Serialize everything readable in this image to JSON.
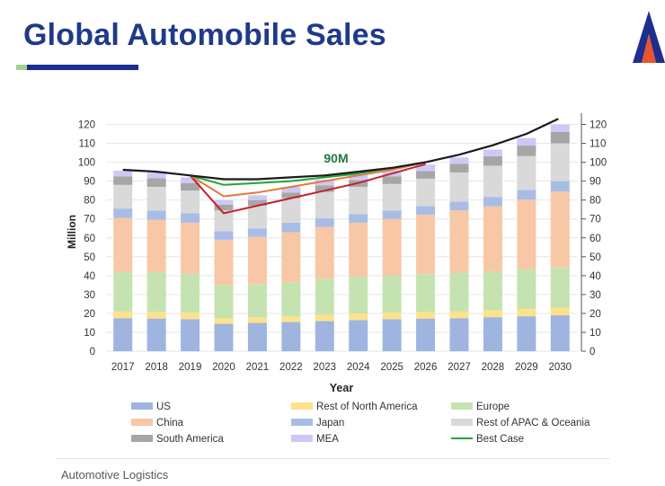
{
  "page": {
    "title": "Global Automobile Sales",
    "footer": "Automotive Logistics",
    "logo_letter": "T"
  },
  "colors": {
    "title": "#1f3a8a",
    "US": "#9fb5e0",
    "Rest of North America": "#fce28a",
    "Europe": "#c5e3b1",
    "China": "#f7c7a6",
    "Japan": "#a8bde6",
    "Rest of APAC & Oceania": "#d9d9d9",
    "South America": "#a6a6a6",
    "MEA": "#cdc8f5",
    "best_case": "#22a33a",
    "mid_case": "#e07b39",
    "worst_case": "#c0232b",
    "baseline": "#1a1a1a",
    "annotation": "#1f7a3a"
  },
  "chart_data": {
    "type": "bar",
    "stacked": true,
    "title": "",
    "xlabel": "Year",
    "ylabel": "Million",
    "ylim": [
      0,
      125
    ],
    "yticks": [
      0,
      10,
      20,
      30,
      40,
      50,
      60,
      70,
      80,
      90,
      100,
      110,
      120
    ],
    "ytick_labels": [
      "0",
      "10",
      "20",
      "30",
      "40",
      "50",
      "60",
      "70",
      "80",
      "90",
      "100",
      "110",
      "120"
    ],
    "grid": true,
    "legend_position": "bottom",
    "annotation": "90M",
    "categories": [
      "2017",
      "2018",
      "2019",
      "2020",
      "2021",
      "2022",
      "2023",
      "2024",
      "2025",
      "2026",
      "2027",
      "2028",
      "2029",
      "2030"
    ],
    "series": [
      {
        "name": "US",
        "values": [
          17.5,
          17.3,
          17.0,
          14.5,
          15.0,
          15.5,
          16.0,
          16.5,
          17.0,
          17.3,
          17.5,
          18.0,
          18.5,
          19.0
        ]
      },
      {
        "name": "Rest of North America",
        "values": [
          3.5,
          3.5,
          3.5,
          3.0,
          3.0,
          3.0,
          3.3,
          3.5,
          3.5,
          3.5,
          3.6,
          3.7,
          3.8,
          4.0
        ]
      },
      {
        "name": "Europe",
        "values": [
          21.0,
          21.2,
          20.5,
          17.5,
          17.5,
          18.0,
          19.0,
          19.5,
          19.5,
          20.0,
          20.5,
          20.5,
          21.0,
          21.5
        ]
      },
      {
        "name": "China",
        "values": [
          28.5,
          27.5,
          27.0,
          24.0,
          25.0,
          26.5,
          27.5,
          28.5,
          30.0,
          31.5,
          33.0,
          34.5,
          37.0,
          40.0
        ]
      },
      {
        "name": "Japan",
        "values": [
          5.0,
          5.0,
          5.0,
          4.5,
          4.5,
          5.0,
          4.5,
          4.5,
          4.5,
          4.5,
          4.5,
          5.0,
          5.0,
          5.5
        ]
      },
      {
        "name": "Rest of APAC & Oceania",
        "values": [
          12.5,
          12.5,
          12.0,
          11.0,
          12.0,
          13.0,
          14.0,
          14.5,
          14.0,
          14.5,
          15.5,
          16.5,
          18.0,
          20.0
        ]
      },
      {
        "name": "South America",
        "values": [
          4.5,
          4.5,
          4.0,
          3.0,
          3.0,
          3.0,
          3.5,
          3.5,
          4.0,
          4.0,
          4.5,
          5.0,
          5.5,
          6.0
        ]
      },
      {
        "name": "MEA",
        "values": [
          3.0,
          3.0,
          3.0,
          2.5,
          2.5,
          3.0,
          3.0,
          3.0,
          3.0,
          3.5,
          3.5,
          3.5,
          4.0,
          4.0
        ]
      }
    ],
    "lines": [
      {
        "name": "Baseline",
        "years": [
          "2017",
          "2018",
          "2019",
          "2020",
          "2021",
          "2022",
          "2023",
          "2024",
          "2025",
          "2026",
          "2027",
          "2028",
          "2029",
          "2030"
        ],
        "values": [
          96,
          95,
          93,
          91,
          91,
          92,
          93,
          95,
          97,
          100,
          104,
          109,
          115,
          123
        ]
      },
      {
        "name": "Best Case",
        "years": [
          "2019",
          "2020",
          "2021",
          "2022",
          "2023",
          "2024",
          "2025",
          "2026"
        ],
        "values": [
          93,
          88,
          89,
          90,
          92,
          94,
          97,
          100
        ]
      },
      {
        "name": "Mid Case",
        "years": [
          "2019",
          "2020",
          "2021",
          "2022",
          "2023",
          "2024",
          "2025",
          "2026"
        ],
        "values": [
          93,
          82,
          84,
          87,
          90,
          93,
          96,
          100
        ]
      },
      {
        "name": "Worst Case",
        "years": [
          "2019",
          "2020",
          "2021",
          "2022",
          "2023",
          "2024",
          "2025",
          "2026"
        ],
        "values": [
          93,
          73,
          77,
          81,
          85,
          89,
          94,
          99
        ]
      }
    ],
    "legend": [
      {
        "label": "US",
        "kind": "box"
      },
      {
        "label": "Rest of North America",
        "kind": "box"
      },
      {
        "label": "Europe",
        "kind": "box"
      },
      {
        "label": "China",
        "kind": "box"
      },
      {
        "label": "Japan",
        "kind": "box"
      },
      {
        "label": "Rest of APAC & Oceania",
        "kind": "box"
      },
      {
        "label": "South America",
        "kind": "box"
      },
      {
        "label": "MEA",
        "kind": "box"
      },
      {
        "label": "Best Case",
        "kind": "line"
      }
    ]
  }
}
